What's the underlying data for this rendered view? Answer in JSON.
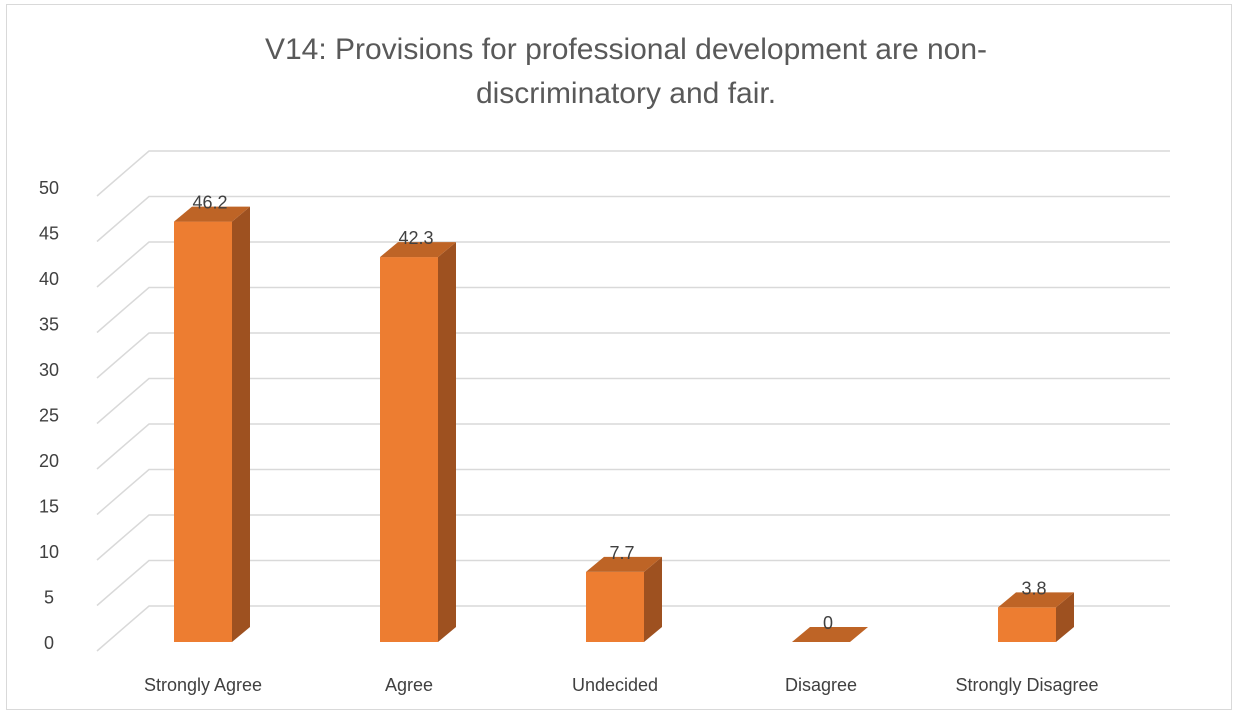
{
  "chart_data": {
    "type": "bar",
    "title_lines": [
      "V14: Provisions for professional development are non-",
      "discriminatory and fair."
    ],
    "categories": [
      "Strongly Agree",
      "Agree",
      "Undecided",
      "Disagree",
      "Strongly Disagree"
    ],
    "values": [
      46.2,
      42.3,
      7.7,
      0,
      3.8
    ],
    "value_labels": [
      "46.2",
      "42.3",
      "7.7",
      "0",
      "3.8"
    ],
    "y_ticks": [
      "0",
      "5",
      "10",
      "15",
      "20",
      "25",
      "30",
      "35",
      "40",
      "45",
      "50"
    ],
    "ylim": [
      0,
      50
    ],
    "grid": true,
    "style": "3d-column",
    "colors": {
      "bar_front": "#ED7D31",
      "bar_side": "#9E5120",
      "bar_top": "#BE6426",
      "grid": "#D9D9D9",
      "text": "#404040",
      "title": "#595959"
    }
  }
}
